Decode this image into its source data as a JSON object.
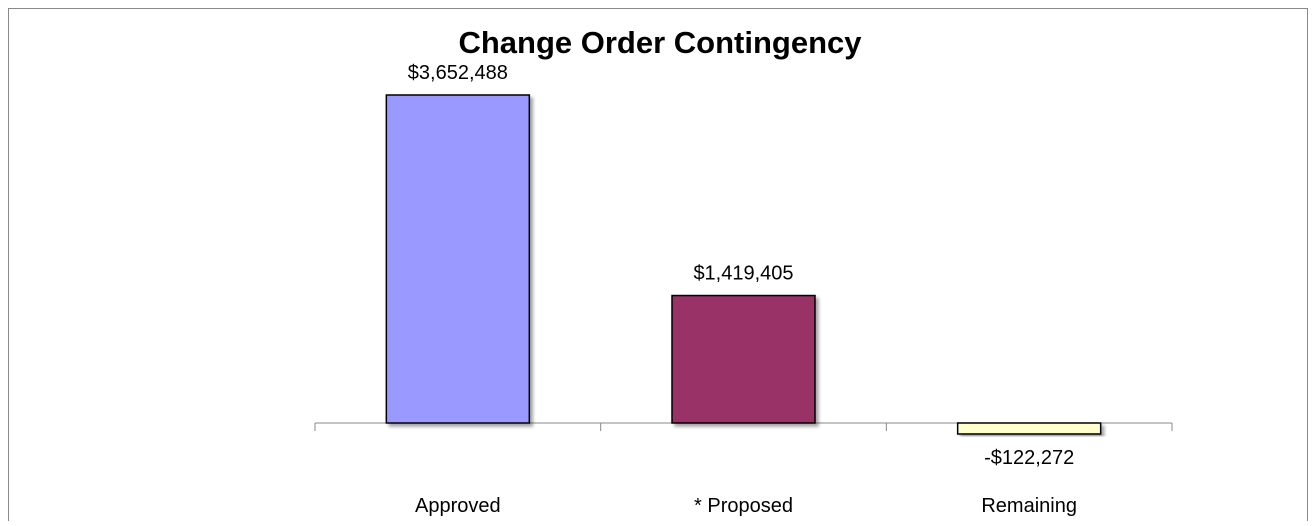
{
  "chart_data": {
    "type": "bar",
    "title": "Change Order Contingency",
    "categories": [
      "Approved",
      "* Proposed",
      "Remaining"
    ],
    "values": [
      3652488,
      1419405,
      -122272
    ],
    "value_labels": [
      "$3,652,488",
      "$1,419,405",
      "-$122,272"
    ],
    "colors": [
      "#9999ff",
      "#993366",
      "#ffffcc"
    ]
  }
}
